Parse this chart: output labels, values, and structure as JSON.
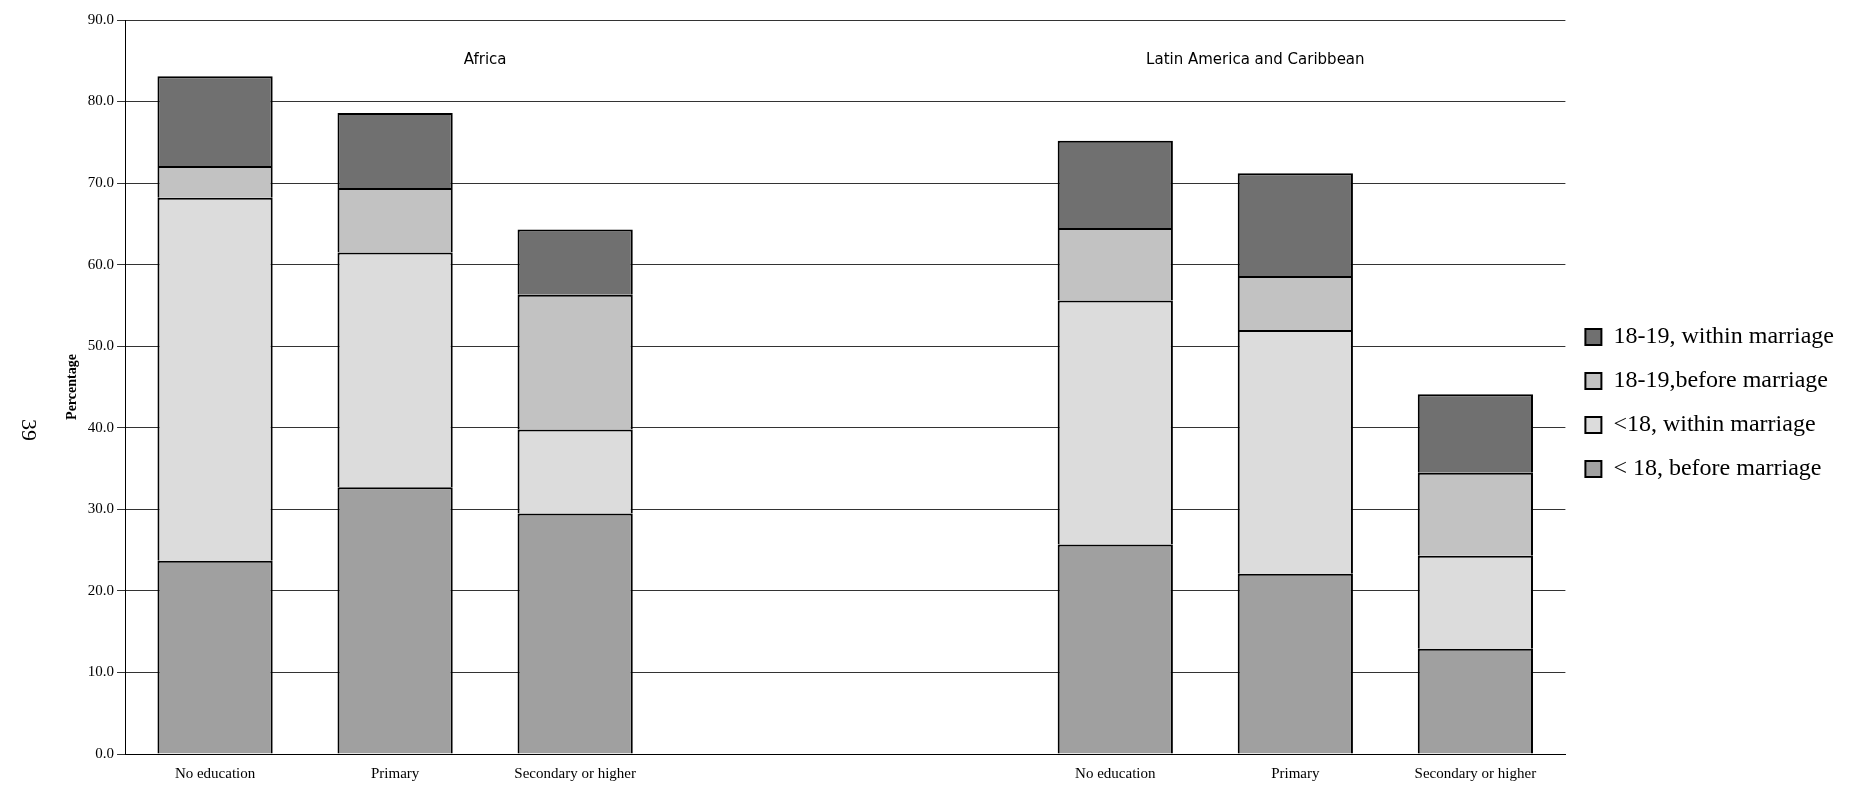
{
  "chart_data": {
    "type": "bar",
    "stacked": true,
    "ylabel": "Percentage",
    "categories": [
      "No education",
      "Primary",
      "Secondary or higher",
      null,
      null,
      "No education",
      "Primary",
      "Secondary or higher"
    ],
    "series": [
      {
        "name": "< 18, before marriage",
        "color": "#a0a0a0",
        "values": [
          23.7,
          32.7,
          29.5,
          null,
          null,
          25.7,
          22.1,
          12.9
        ]
      },
      {
        "name": "<18, within marriage",
        "color": "#dcdcdc",
        "values": [
          44.5,
          28.8,
          10.3,
          null,
          null,
          29.9,
          29.9,
          11.4
        ]
      },
      {
        "name": "18-19,before marriage",
        "color": "#c2c2c2",
        "values": [
          3.9,
          7.9,
          16.5,
          null,
          null,
          8.9,
          6.6,
          10.2
        ]
      },
      {
        "name": "18-19, within marriage",
        "color": "#707070",
        "values": [
          11.0,
          9.2,
          8.0,
          null,
          null,
          10.7,
          12.6,
          9.6
        ]
      }
    ],
    "ylim": [
      0,
      90
    ],
    "yticks": [
      {
        "value": 0,
        "label": "0.0"
      },
      {
        "value": 10,
        "label": "10.0"
      },
      {
        "value": 20,
        "label": "20.0"
      },
      {
        "value": 30,
        "label": "30.0"
      },
      {
        "value": 40,
        "label": "40.0"
      },
      {
        "value": 50,
        "label": "50.0"
      },
      {
        "value": 60,
        "label": "60.0"
      },
      {
        "value": 70,
        "label": "70.0"
      },
      {
        "value": 80,
        "label": "80.0"
      },
      {
        "value": 90,
        "label": "90.0"
      }
    ],
    "grid": "y",
    "legend": "right",
    "annotations": [
      "Africa",
      "Latin America and Caribbean",
      "39"
    ]
  }
}
